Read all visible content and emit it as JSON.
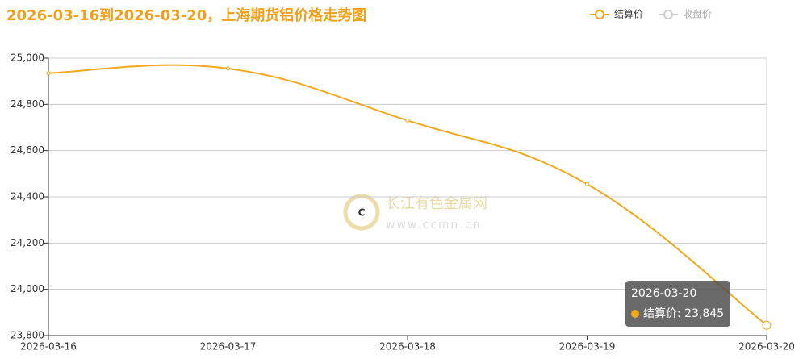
{
  "chart_data": {
    "type": "line",
    "title": "2026-03-16到2026-03-20，上海期货铝价格走势图",
    "categories": [
      "2026-03-16",
      "2026-03-17",
      "2026-03-18",
      "2026-03-19",
      "2026-03-20"
    ],
    "series": [
      {
        "name": "结算价",
        "color": "#f0a91c",
        "values": [
          24935,
          24955,
          24730,
          24455,
          23845
        ]
      }
    ],
    "legend_inactive": [
      "收盘价"
    ],
    "ylim": [
      23800,
      25000
    ],
    "yticks": [
      {
        "value": 23800,
        "label": "23,800"
      },
      {
        "value": 24000,
        "label": "24,000"
      },
      {
        "value": 24200,
        "label": "24,200"
      },
      {
        "value": 24400,
        "label": "24,400"
      },
      {
        "value": 24600,
        "label": "24,600"
      },
      {
        "value": 24800,
        "label": "24,800"
      },
      {
        "value": 25000,
        "label": "25,000"
      }
    ],
    "grid": true,
    "legend_position": "top-right",
    "tooltip": {
      "title": "2026-03-20",
      "text": "结算价: 23,845"
    },
    "watermark": {
      "name": "长江有色金属网",
      "url": "www.ccmn.cn"
    }
  }
}
